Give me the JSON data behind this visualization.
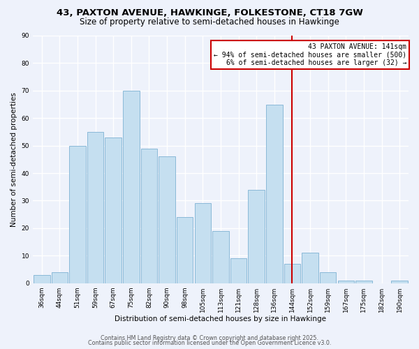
{
  "title": "43, PAXTON AVENUE, HAWKINGE, FOLKESTONE, CT18 7GW",
  "subtitle": "Size of property relative to semi-detached houses in Hawkinge",
  "xlabel": "Distribution of semi-detached houses by size in Hawkinge",
  "ylabel": "Number of semi-detached properties",
  "bar_labels": [
    "36sqm",
    "44sqm",
    "51sqm",
    "59sqm",
    "67sqm",
    "75sqm",
    "82sqm",
    "90sqm",
    "98sqm",
    "105sqm",
    "113sqm",
    "121sqm",
    "128sqm",
    "136sqm",
    "144sqm",
    "152sqm",
    "159sqm",
    "167sqm",
    "175sqm",
    "182sqm",
    "190sqm"
  ],
  "bar_heights": [
    3,
    4,
    50,
    55,
    53,
    70,
    49,
    46,
    24,
    29,
    19,
    9,
    34,
    65,
    7,
    11,
    4,
    1,
    1,
    0,
    1
  ],
  "bar_color": "#c5dff0",
  "bar_edge_color": "#8ab9d8",
  "vline_index": 14,
  "vline_color": "#cc0000",
  "ylim": [
    0,
    90
  ],
  "yticks": [
    0,
    10,
    20,
    30,
    40,
    50,
    60,
    70,
    80,
    90
  ],
  "annotation_title": "43 PAXTON AVENUE: 141sqm",
  "annotation_line1": "← 94% of semi-detached houses are smaller (500)",
  "annotation_line2": "6% of semi-detached houses are larger (32) →",
  "footer1": "Contains HM Land Registry data © Crown copyright and database right 2025.",
  "footer2": "Contains public sector information licensed under the Open Government Licence v3.0.",
  "background_color": "#eef2fb",
  "grid_color": "#ffffff",
  "title_fontsize": 9.5,
  "subtitle_fontsize": 8.5,
  "axis_label_fontsize": 7.5,
  "tick_fontsize": 6.5,
  "annotation_fontsize": 7.0,
  "footer_fontsize": 5.8
}
